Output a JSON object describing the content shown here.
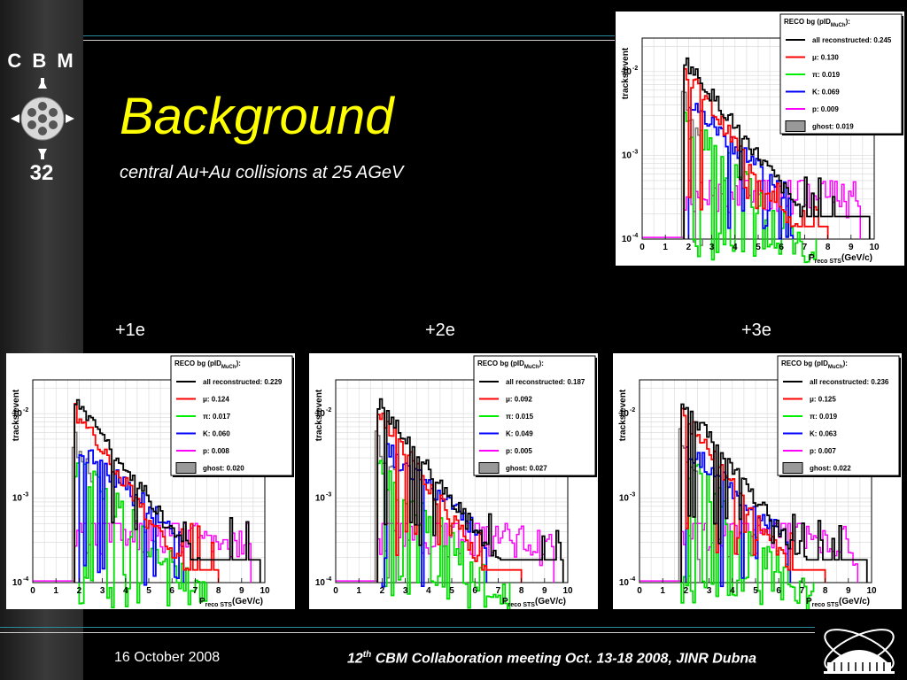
{
  "sidebar": {
    "logo_text": "C B M",
    "number": "32"
  },
  "slide": {
    "title": "Background",
    "subtitle": "central Au+Au collisions at 25 AGeV",
    "panel_labels": [
      "+1e",
      "+2e",
      "+3e"
    ]
  },
  "footer": {
    "date": "16 October 2008",
    "meeting_num": "12",
    "meeting_sup": "th",
    "meeting_text": " CBM  Collaboration meeting Oct. 13-18 2008, JINR Dubna"
  },
  "colors": {
    "all": "#000000",
    "mu": "#ff0000",
    "pi": "#00ee00",
    "K": "#0000ff",
    "p": "#ff00ff",
    "ghost": "#999999"
  },
  "chart_data": [
    {
      "type": "histogram",
      "panel": "top",
      "ylabel": "tracks/event",
      "xlabel": "P",
      "xlabel_sub": "reco STS",
      "xlabel_unit": "(GeV/c)",
      "xlim": [
        0,
        10
      ],
      "ylim_log10": [
        -4,
        -1.6
      ],
      "log_y": true,
      "xticks": [
        0,
        1,
        2,
        3,
        4,
        5,
        6,
        7,
        8,
        9,
        10
      ],
      "yticks": [
        "10",
        "10",
        "10"
      ],
      "yticks_exp": [
        "-2",
        "-3",
        "-4"
      ],
      "ytick_log10": [
        -2,
        -3,
        -4
      ],
      "legend_title": "RECO bg (pID",
      "legend_title_sub": "MuCh",
      "legend_title_end": "):",
      "legend": [
        {
          "key": "all",
          "label": "all reconstructed: 0.245",
          "color": "#000000"
        },
        {
          "key": "mu",
          "label": "μ: 0.130",
          "color": "#ff0000"
        },
        {
          "key": "pi",
          "label": "π: 0.019",
          "color": "#00ee00"
        },
        {
          "key": "K",
          "label": "K: 0.069",
          "color": "#0000ff"
        },
        {
          "key": "p",
          "label": "p: 0.009",
          "color": "#ff00ff"
        },
        {
          "key": "ghost",
          "label": "ghost: 0.019",
          "color": "#999999",
          "box": true
        }
      ]
    },
    {
      "type": "histogram",
      "panel": "+1e",
      "ylabel": "tracks/event",
      "xlabel": "P",
      "xlabel_sub": "reco STS",
      "xlabel_unit": "(GeV/c)",
      "xlim": [
        0,
        10
      ],
      "ylim_log10": [
        -4,
        -1.6
      ],
      "log_y": true,
      "xticks": [
        0,
        1,
        2,
        3,
        4,
        5,
        6,
        7,
        8,
        9,
        10
      ],
      "yticks": [
        "10",
        "10",
        "10"
      ],
      "yticks_exp": [
        "-2",
        "-3",
        "-4"
      ],
      "ytick_log10": [
        -2,
        -3,
        -4
      ],
      "legend_title": "RECO bg (pID",
      "legend_title_sub": "MuCh",
      "legend_title_end": "):",
      "legend": [
        {
          "key": "all",
          "label": "all reconstructed: 0.229",
          "color": "#000000"
        },
        {
          "key": "mu",
          "label": "μ: 0.124",
          "color": "#ff0000"
        },
        {
          "key": "pi",
          "label": "π: 0.017",
          "color": "#00ee00"
        },
        {
          "key": "K",
          "label": "K: 0.060",
          "color": "#0000ff"
        },
        {
          "key": "p",
          "label": "p: 0.008",
          "color": "#ff00ff"
        },
        {
          "key": "ghost",
          "label": "ghost: 0.020",
          "color": "#999999",
          "box": true
        }
      ]
    },
    {
      "type": "histogram",
      "panel": "+2e",
      "ylabel": "tracks/event",
      "xlabel": "P",
      "xlabel_sub": "reco STS",
      "xlabel_unit": "(GeV/c)",
      "xlim": [
        0,
        10
      ],
      "ylim_log10": [
        -4,
        -1.6
      ],
      "log_y": true,
      "xticks": [
        0,
        1,
        2,
        3,
        4,
        5,
        6,
        7,
        8,
        9,
        10
      ],
      "yticks": [
        "10",
        "10",
        "10"
      ],
      "yticks_exp": [
        "-2",
        "-3",
        "-4"
      ],
      "ytick_log10": [
        -2,
        -3,
        -4
      ],
      "legend_title": "RECO bg (pID",
      "legend_title_sub": "MuCh",
      "legend_title_end": "):",
      "legend": [
        {
          "key": "all",
          "label": "all reconstructed: 0.187",
          "color": "#000000"
        },
        {
          "key": "mu",
          "label": "μ: 0.092",
          "color": "#ff0000"
        },
        {
          "key": "pi",
          "label": "π: 0.015",
          "color": "#00ee00"
        },
        {
          "key": "K",
          "label": "K: 0.049",
          "color": "#0000ff"
        },
        {
          "key": "p",
          "label": "p: 0.005",
          "color": "#ff00ff"
        },
        {
          "key": "ghost",
          "label": "ghost: 0.027",
          "color": "#999999",
          "box": true
        }
      ]
    },
    {
      "type": "histogram",
      "panel": "+3e",
      "ylabel": "tracks/event",
      "xlabel": "P",
      "xlabel_sub": "reco STS",
      "xlabel_unit": "(GeV/c)",
      "xlim": [
        0,
        10
      ],
      "ylim_log10": [
        -4,
        -1.6
      ],
      "log_y": true,
      "xticks": [
        0,
        1,
        2,
        3,
        4,
        5,
        6,
        7,
        8,
        9,
        10
      ],
      "yticks": [
        "10",
        "10",
        "10"
      ],
      "yticks_exp": [
        "-2",
        "-3",
        "-4"
      ],
      "ytick_log10": [
        -2,
        -3,
        -4
      ],
      "legend_title": "RECO bg (pID",
      "legend_title_sub": "MuCh",
      "legend_title_end": "):",
      "legend": [
        {
          "key": "all",
          "label": "all reconstructed: 0.236",
          "color": "#000000"
        },
        {
          "key": "mu",
          "label": "μ: 0.125",
          "color": "#ff0000"
        },
        {
          "key": "pi",
          "label": "π: 0.019",
          "color": "#00ee00"
        },
        {
          "key": "K",
          "label": "K: 0.063",
          "color": "#0000ff"
        },
        {
          "key": "p",
          "label": "p: 0.007",
          "color": "#ff00ff"
        },
        {
          "key": "ghost",
          "label": "ghost: 0.022",
          "color": "#999999",
          "box": true
        }
      ]
    }
  ]
}
